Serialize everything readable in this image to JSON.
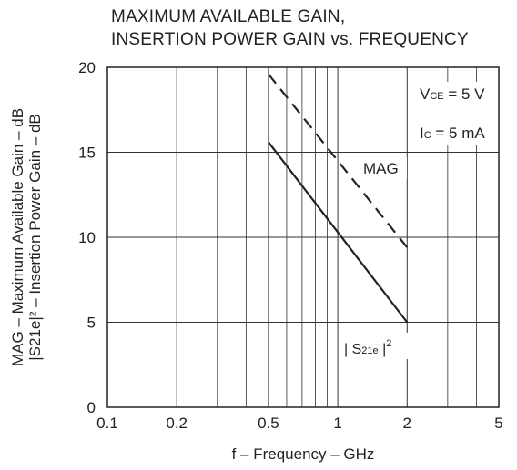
{
  "chart_data": {
    "type": "line",
    "title_lines": [
      "MAXIMUM AVAILABLE GAIN,",
      "INSERTION POWER GAIN vs. FREQUENCY"
    ],
    "xlabel": "f – Frequency – GHz",
    "ylabel_lines": [
      "MAG – Maximum Available Gain – dB",
      "|S21e|² – Insertion Power Gain – dB"
    ],
    "x_scale": "log",
    "xlim": [
      0.1,
      5
    ],
    "ylim": [
      0,
      20
    ],
    "x_ticks": [
      0.1,
      0.2,
      0.5,
      1,
      2,
      5
    ],
    "x_tick_labels": [
      "0.1",
      "0.2",
      "0.5",
      "1",
      "2",
      "5"
    ],
    "y_ticks": [
      0,
      5,
      10,
      15,
      20
    ],
    "y_tick_labels": [
      "0",
      "5",
      "10",
      "15",
      "20"
    ],
    "grid": true,
    "conditions": [
      {
        "sym": "V",
        "sub": "CE",
        "val": " = 5 V"
      },
      {
        "sym": "I",
        "sub": "C",
        "val": " = 5 mA"
      }
    ],
    "series": [
      {
        "name": "MAG",
        "style": "dashed",
        "x": [
          0.5,
          2
        ],
        "y": [
          19.6,
          9.4
        ]
      },
      {
        "name": "| S21e | 2",
        "label_sym": "| S",
        "label_sub": "21e",
        "label_tail": " |",
        "label_sup": "2",
        "style": "solid",
        "x": [
          0.5,
          2
        ],
        "y": [
          15.6,
          5.0
        ]
      }
    ]
  }
}
